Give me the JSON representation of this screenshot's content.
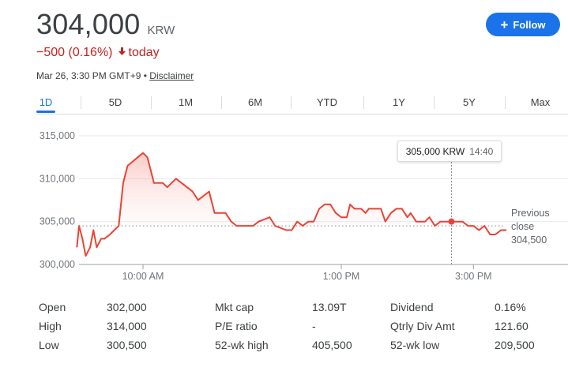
{
  "quote": {
    "price": "304,000",
    "currency": "KRW",
    "change": "−500 (0.16%)",
    "change_direction": "down",
    "period": "today",
    "timestamp": "Mar 26, 3:30 PM GMT+9",
    "separator": "•",
    "disclaimer": "Disclaimer"
  },
  "follow_button": {
    "label": "Follow",
    "icon": "plus-icon"
  },
  "tabs": [
    "1D",
    "5D",
    "1M",
    "6M",
    "YTD",
    "1Y",
    "5Y",
    "Max"
  ],
  "active_tab": "1D",
  "chart_data": {
    "type": "line",
    "y_ticks": [
      "315,000",
      "310,000",
      "305,000",
      "300,000"
    ],
    "x_ticks": [
      "10:00 AM",
      "1:00 PM",
      "3:00 PM"
    ],
    "ylim": [
      300000,
      315000
    ],
    "xlim": [
      "9:00",
      "15:40"
    ],
    "previous_close": 304500,
    "previous_close_label": [
      "Previous",
      "close",
      "304,500"
    ],
    "tooltip": {
      "value": "305,000 KRW",
      "time": "14:40"
    },
    "series": [
      {
        "x": [
          "9:00",
          "9:02",
          "9:05",
          "9:08",
          "9:12",
          "9:15",
          "9:18",
          "9:22",
          "9:25",
          "9:30",
          "9:34",
          "9:38",
          "9:42",
          "9:46",
          "10:00",
          "10:04",
          "10:10",
          "10:15",
          "10:18",
          "10:22",
          "10:30",
          "10:40",
          "10:45",
          "10:50",
          "10:55",
          "11:00",
          "11:05",
          "11:10",
          "11:15",
          "11:20",
          "11:25",
          "11:30",
          "11:40",
          "11:45",
          "11:55",
          "12:00",
          "12:10",
          "12:15",
          "12:20",
          "12:25",
          "12:30",
          "12:35",
          "12:40",
          "12:45",
          "12:50",
          "12:55",
          "13:00",
          "13:05",
          "13:08",
          "13:12",
          "13:18",
          "13:22",
          "13:25",
          "13:28",
          "13:32",
          "13:36",
          "13:40",
          "13:45",
          "13:50",
          "13:55",
          "14:00",
          "14:03",
          "14:08",
          "14:12",
          "14:16",
          "14:20",
          "14:25",
          "14:30",
          "14:35",
          "14:40",
          "14:45",
          "14:50",
          "14:55",
          "15:00",
          "15:05",
          "15:10",
          "15:15",
          "15:20",
          "15:25",
          "15:30"
        ],
        "y": [
          302000,
          304500,
          303000,
          301000,
          302000,
          304000,
          302000,
          303000,
          303000,
          303500,
          304000,
          304500,
          309500,
          311500,
          313000,
          312500,
          309500,
          309500,
          309500,
          309000,
          310000,
          309000,
          308500,
          307500,
          308000,
          308500,
          306000,
          306000,
          306000,
          305000,
          304500,
          304500,
          304500,
          305000,
          305500,
          304500,
          304000,
          304000,
          305000,
          304500,
          305000,
          305000,
          306500,
          307000,
          307000,
          306000,
          305500,
          305500,
          307000,
          306500,
          306500,
          306000,
          306500,
          306500,
          306500,
          306500,
          305000,
          306000,
          306500,
          306500,
          305500,
          306000,
          305000,
          305000,
          305000,
          305500,
          304500,
          305000,
          305000,
          305000,
          305000,
          305000,
          304500,
          304500,
          304000,
          304500,
          303500,
          303500,
          304000,
          304000
        ]
      }
    ]
  },
  "stats": [
    {
      "label": "Open",
      "value": "302,000"
    },
    {
      "label": "High",
      "value": "314,000"
    },
    {
      "label": "Low",
      "value": "300,500"
    },
    {
      "label": "Mkt cap",
      "value": "13.09T"
    },
    {
      "label": "P/E ratio",
      "value": "-"
    },
    {
      "label": "52-wk high",
      "value": "405,500"
    },
    {
      "label": "Dividend",
      "value": "0.16%"
    },
    {
      "label": "Qtrly Div Amt",
      "value": "121.60"
    },
    {
      "label": "52-wk low",
      "value": "209,500"
    }
  ],
  "colors": {
    "accent": "#1a73e8",
    "negative": "#c5221f",
    "line": "#ea4335",
    "fill": "#fbe3e1"
  }
}
